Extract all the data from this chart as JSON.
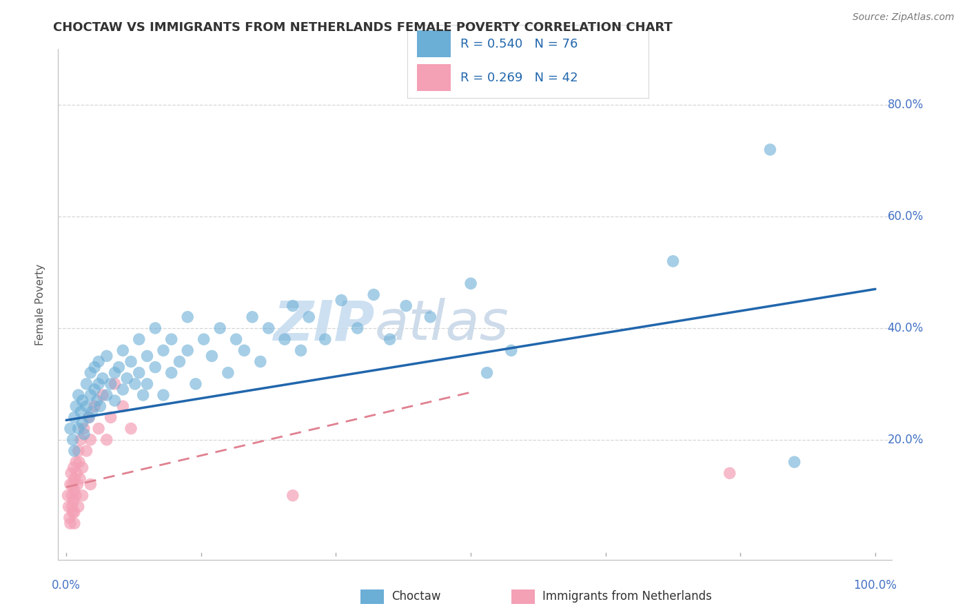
{
  "title": "CHOCTAW VS IMMIGRANTS FROM NETHERLANDS FEMALE POVERTY CORRELATION CHART",
  "source": "Source: ZipAtlas.com",
  "ylabel": "Female Poverty",
  "legend1_label": "R = 0.540   N = 76",
  "legend2_label": "R = 0.269   N = 42",
  "legend_bottom_label1": "Choctaw",
  "legend_bottom_label2": "Immigrants from Netherlands",
  "choctaw_color": "#6baed6",
  "netherlands_color": "#f4a0b5",
  "choctaw_line_color": "#2166ac",
  "netherlands_line_color": "#e08090",
  "R_choctaw": 0.54,
  "N_choctaw": 76,
  "R_netherlands": 0.269,
  "N_netherlands": 42,
  "choctaw_x": [
    0.005,
    0.008,
    0.01,
    0.01,
    0.012,
    0.015,
    0.015,
    0.018,
    0.02,
    0.02,
    0.022,
    0.025,
    0.025,
    0.028,
    0.03,
    0.03,
    0.032,
    0.035,
    0.035,
    0.038,
    0.04,
    0.04,
    0.042,
    0.045,
    0.05,
    0.05,
    0.055,
    0.06,
    0.06,
    0.065,
    0.07,
    0.07,
    0.075,
    0.08,
    0.085,
    0.09,
    0.09,
    0.095,
    0.1,
    0.1,
    0.11,
    0.11,
    0.12,
    0.12,
    0.13,
    0.13,
    0.14,
    0.15,
    0.15,
    0.16,
    0.17,
    0.18,
    0.19,
    0.2,
    0.21,
    0.22,
    0.23,
    0.24,
    0.25,
    0.27,
    0.28,
    0.29,
    0.3,
    0.32,
    0.34,
    0.36,
    0.38,
    0.4,
    0.42,
    0.45,
    0.5,
    0.52,
    0.55,
    0.75,
    0.87,
    0.9
  ],
  "choctaw_y": [
    0.22,
    0.2,
    0.24,
    0.18,
    0.26,
    0.22,
    0.28,
    0.25,
    0.23,
    0.27,
    0.21,
    0.26,
    0.3,
    0.24,
    0.28,
    0.32,
    0.25,
    0.29,
    0.33,
    0.27,
    0.3,
    0.34,
    0.26,
    0.31,
    0.28,
    0.35,
    0.3,
    0.32,
    0.27,
    0.33,
    0.29,
    0.36,
    0.31,
    0.34,
    0.3,
    0.32,
    0.38,
    0.28,
    0.35,
    0.3,
    0.33,
    0.4,
    0.36,
    0.28,
    0.38,
    0.32,
    0.34,
    0.36,
    0.42,
    0.3,
    0.38,
    0.35,
    0.4,
    0.32,
    0.38,
    0.36,
    0.42,
    0.34,
    0.4,
    0.38,
    0.44,
    0.36,
    0.42,
    0.38,
    0.45,
    0.4,
    0.46,
    0.38,
    0.44,
    0.42,
    0.48,
    0.32,
    0.36,
    0.52,
    0.72,
    0.16
  ],
  "netherlands_x": [
    0.002,
    0.003,
    0.004,
    0.005,
    0.005,
    0.006,
    0.007,
    0.007,
    0.008,
    0.008,
    0.009,
    0.009,
    0.01,
    0.01,
    0.01,
    0.01,
    0.012,
    0.012,
    0.013,
    0.014,
    0.015,
    0.015,
    0.016,
    0.017,
    0.018,
    0.02,
    0.02,
    0.022,
    0.025,
    0.028,
    0.03,
    0.03,
    0.035,
    0.04,
    0.045,
    0.05,
    0.055,
    0.06,
    0.07,
    0.08,
    0.28,
    0.82
  ],
  "netherlands_y": [
    0.1,
    0.08,
    0.06,
    0.12,
    0.05,
    0.14,
    0.1,
    0.08,
    0.12,
    0.07,
    0.15,
    0.09,
    0.13,
    0.11,
    0.07,
    0.05,
    0.16,
    0.1,
    0.14,
    0.12,
    0.18,
    0.08,
    0.16,
    0.13,
    0.2,
    0.15,
    0.1,
    0.22,
    0.18,
    0.24,
    0.2,
    0.12,
    0.26,
    0.22,
    0.28,
    0.2,
    0.24,
    0.3,
    0.26,
    0.22,
    0.1,
    0.14
  ],
  "neth_line_x": [
    0.0,
    0.5
  ],
  "neth_line_y": [
    0.115,
    0.285
  ],
  "cho_line_x": [
    0.0,
    1.0
  ],
  "cho_line_y": [
    0.235,
    0.47
  ],
  "xlim": [
    -0.01,
    1.02
  ],
  "ylim": [
    -0.015,
    0.9
  ],
  "yticks": [
    0.2,
    0.4,
    0.6,
    0.8
  ],
  "ytick_labels": [
    "20.0%",
    "40.0%",
    "60.0%",
    "80.0%"
  ],
  "background": "#ffffff",
  "grid_color": "#cccccc",
  "title_color": "#333333",
  "axis_label_color": "#4472c4",
  "source_text": "Source: ZipAtlas.com"
}
